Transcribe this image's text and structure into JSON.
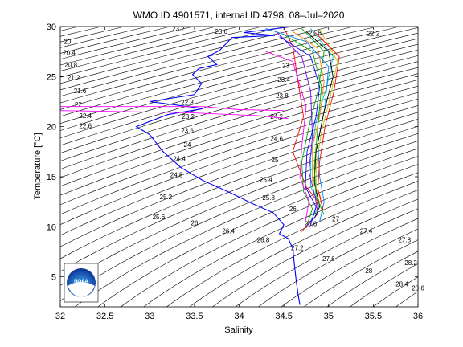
{
  "chart_data": {
    "type": "line",
    "title": "WMO ID 4901571, internal ID 4798, 08–Jul–2020",
    "xlabel": "Salinity",
    "ylabel": "Temperature [°C]",
    "xlim": [
      32,
      36
    ],
    "ylim": [
      2,
      30
    ],
    "xticks": [
      "32",
      "32.5",
      "33",
      "33.5",
      "34",
      "34.5",
      "35",
      "35.5",
      "36"
    ],
    "yticks": [
      "5",
      "10",
      "15",
      "20",
      "25",
      "30"
    ],
    "grid": false,
    "density_contours": {
      "color": "#000000",
      "labels": [
        {
          "label": "20",
          "s": 32.08,
          "t": 28.5
        },
        {
          "label": "20.4",
          "s": 32.1,
          "t": 27.4
        },
        {
          "label": "20.8",
          "s": 32.12,
          "t": 26.2
        },
        {
          "label": "21.2",
          "s": 32.15,
          "t": 24.9
        },
        {
          "label": "21.6",
          "s": 32.22,
          "t": 23.6
        },
        {
          "label": "22",
          "s": 32.2,
          "t": 22.2
        },
        {
          "label": "22.4",
          "s": 32.28,
          "t": 21.1
        },
        {
          "label": "22.6",
          "s": 32.28,
          "t": 20.1
        },
        {
          "label": "22.8",
          "s": 33.42,
          "t": 22.4
        },
        {
          "label": "23.2",
          "s": 33.43,
          "t": 21.0
        },
        {
          "label": "23.6",
          "s": 33.42,
          "t": 19.6
        },
        {
          "label": "24",
          "s": 33.42,
          "t": 18.2
        },
        {
          "label": "24.4",
          "s": 33.33,
          "t": 16.8
        },
        {
          "label": "24.8",
          "s": 33.3,
          "t": 15.2
        },
        {
          "label": "25.2",
          "s": 33.18,
          "t": 13.0
        },
        {
          "label": "25.6",
          "s": 33.1,
          "t": 11.0
        },
        {
          "label": "26",
          "s": 33.5,
          "t": 10.4
        },
        {
          "label": "26.4",
          "s": 33.88,
          "t": 9.6
        },
        {
          "label": "26.8",
          "s": 34.27,
          "t": 8.7
        },
        {
          "label": "27.2",
          "s": 34.65,
          "t": 7.9
        },
        {
          "label": "27",
          "s": 35.08,
          "t": 10.8
        },
        {
          "label": "27.4",
          "s": 35.42,
          "t": 9.6
        },
        {
          "label": "27.6",
          "s": 35.0,
          "t": 6.8
        },
        {
          "label": "27.8",
          "s": 35.85,
          "t": 8.7
        },
        {
          "label": "28",
          "s": 35.45,
          "t": 5.6
        },
        {
          "label": "28.2",
          "s": 35.92,
          "t": 6.4
        },
        {
          "label": "28.4",
          "s": 35.82,
          "t": 4.3
        },
        {
          "label": "28.6",
          "s": 36.0,
          "t": 3.9
        },
        {
          "label": "23.2",
          "s": 33.32,
          "t": 29.8
        },
        {
          "label": "23.6",
          "s": 33.8,
          "t": 29.5
        },
        {
          "label": "21.8",
          "s": 34.85,
          "t": 29.4
        },
        {
          "label": "22.2",
          "s": 35.5,
          "t": 29.3
        },
        {
          "label": "23",
          "s": 34.52,
          "t": 26.1
        },
        {
          "label": "23.4",
          "s": 34.5,
          "t": 24.7
        },
        {
          "label": "23.8",
          "s": 34.48,
          "t": 23.1
        },
        {
          "label": "24.2",
          "s": 34.42,
          "t": 21.0
        },
        {
          "label": "24.6",
          "s": 34.42,
          "t": 18.8
        },
        {
          "label": "25",
          "s": 34.4,
          "t": 16.7
        },
        {
          "label": "25.4",
          "s": 34.3,
          "t": 14.7
        },
        {
          "label": "25.8",
          "s": 34.33,
          "t": 12.9
        },
        {
          "label": "26",
          "s": 34.6,
          "t": 11.8
        },
        {
          "label": "26.6",
          "s": 34.8,
          "t": 10.3
        }
      ]
    },
    "series": [
      {
        "color": "#0000ff",
        "points": [
          [
            34.6,
            30
          ],
          [
            34.05,
            29.4
          ],
          [
            34.4,
            29.1
          ],
          [
            33.92,
            28.9
          ],
          [
            33.78,
            27.6
          ],
          [
            33.65,
            27.0
          ],
          [
            33.75,
            26.2
          ],
          [
            33.55,
            25.8
          ],
          [
            33.48,
            25.2
          ],
          [
            33.58,
            24.3
          ],
          [
            33.5,
            23.2
          ],
          [
            33.0,
            22.5
          ],
          [
            33.6,
            21.8
          ],
          [
            33.2,
            21.2
          ],
          [
            32.85,
            20.0
          ],
          [
            33.0,
            19.2
          ],
          [
            33.15,
            17.5
          ],
          [
            33.35,
            15.9
          ],
          [
            33.6,
            14.6
          ],
          [
            33.9,
            13.4
          ],
          [
            34.15,
            12.3
          ],
          [
            34.38,
            11.4
          ],
          [
            34.5,
            10.2
          ],
          [
            34.45,
            9.3
          ],
          [
            34.55,
            8.8
          ],
          [
            34.6,
            7.8
          ],
          [
            34.62,
            6.0
          ],
          [
            34.64,
            4.5
          ],
          [
            34.66,
            3.2
          ],
          [
            34.68,
            2.2
          ]
        ]
      },
      {
        "color": "#ff00ff",
        "points": [
          [
            32.0,
            22.0
          ],
          [
            33.6,
            22.0
          ],
          [
            34.0,
            21.7
          ],
          [
            34.5,
            21.6
          ]
        ]
      },
      {
        "color": "#ff00ff",
        "points": [
          [
            32.0,
            21.6
          ],
          [
            33.4,
            21.4
          ],
          [
            34.2,
            21.1
          ],
          [
            34.55,
            20.8
          ]
        ]
      },
      {
        "color": "#ff0000",
        "points": [
          [
            34.5,
            29.9
          ],
          [
            34.6,
            28.0
          ],
          [
            34.65,
            25.0
          ],
          [
            34.72,
            21.0
          ],
          [
            34.6,
            17.5
          ],
          [
            34.75,
            14.0
          ],
          [
            34.88,
            12.5
          ],
          [
            34.82,
            10.8
          ],
          [
            34.7,
            9.5
          ]
        ]
      },
      {
        "color": "#00aa00",
        "points": [
          [
            34.7,
            29.8
          ],
          [
            34.95,
            27.5
          ],
          [
            34.88,
            23.5
          ],
          [
            34.78,
            20.0
          ],
          [
            34.7,
            16.5
          ],
          [
            34.72,
            13.5
          ],
          [
            34.82,
            11.8
          ],
          [
            34.76,
            10.2
          ]
        ]
      },
      {
        "color": "#00bfbf",
        "points": [
          [
            34.8,
            29.8
          ],
          [
            35.05,
            27.0
          ],
          [
            34.98,
            24.0
          ],
          [
            34.86,
            20.5
          ],
          [
            34.8,
            17.0
          ],
          [
            34.8,
            14.0
          ],
          [
            34.9,
            12.2
          ],
          [
            34.8,
            10.6
          ]
        ]
      },
      {
        "color": "#bfbf00",
        "points": [
          [
            34.9,
            29.7
          ],
          [
            35.1,
            26.5
          ],
          [
            35.02,
            23.0
          ],
          [
            34.92,
            19.5
          ],
          [
            34.86,
            16.0
          ],
          [
            34.86,
            13.5
          ],
          [
            34.92,
            11.8
          ]
        ]
      },
      {
        "color": "#7f00ff",
        "points": [
          [
            34.4,
            29.6
          ],
          [
            34.7,
            27.0
          ],
          [
            34.8,
            23.5
          ],
          [
            34.82,
            19.0
          ],
          [
            34.78,
            15.5
          ],
          [
            34.85,
            13.0
          ],
          [
            34.88,
            11.3
          ],
          [
            34.75,
            10.0
          ]
        ]
      },
      {
        "color": "#ff8000",
        "points": [
          [
            34.6,
            29.5
          ],
          [
            34.88,
            27.8
          ],
          [
            34.95,
            24.5
          ],
          [
            34.9,
            21.0
          ],
          [
            34.82,
            18.0
          ],
          [
            34.82,
            14.5
          ],
          [
            34.92,
            12.8
          ]
        ]
      },
      {
        "color": "#0080ff",
        "points": [
          [
            34.3,
            29.8
          ],
          [
            34.75,
            28.5
          ],
          [
            35.0,
            26.0
          ],
          [
            34.96,
            22.0
          ],
          [
            34.88,
            18.5
          ],
          [
            34.9,
            15.0
          ],
          [
            34.95,
            12.5
          ],
          [
            34.9,
            10.5
          ]
        ]
      },
      {
        "color": "#000000",
        "points": [
          [
            34.75,
            29.5
          ],
          [
            35.0,
            27.5
          ],
          [
            35.05,
            25.0
          ],
          [
            34.95,
            21.5
          ],
          [
            34.86,
            17.5
          ],
          [
            34.84,
            14.5
          ],
          [
            34.9,
            12.0
          ],
          [
            34.84,
            10.8
          ]
        ]
      },
      {
        "color": "#ff0000",
        "points": [
          [
            34.85,
            29.4
          ],
          [
            35.12,
            27.0
          ],
          [
            35.06,
            23.5
          ],
          [
            34.96,
            20.0
          ],
          [
            34.9,
            16.5
          ],
          [
            34.88,
            13.8
          ],
          [
            34.94,
            11.6
          ]
        ]
      },
      {
        "color": "#00aa00",
        "points": [
          [
            34.5,
            29.2
          ],
          [
            34.82,
            27.5
          ],
          [
            34.92,
            24.0
          ],
          [
            34.88,
            20.0
          ],
          [
            34.84,
            16.0
          ],
          [
            34.86,
            13.0
          ],
          [
            34.95,
            11.2
          ]
        ]
      },
      {
        "color": "#ff00ff",
        "points": [
          [
            34.3,
            27.5
          ],
          [
            34.6,
            26.5
          ],
          [
            34.75,
            22.0
          ],
          [
            34.7,
            18.0
          ],
          [
            34.68,
            15.0
          ],
          [
            34.78,
            12.5
          ],
          [
            34.74,
            10.4
          ]
        ]
      },
      {
        "color": "#0000ff",
        "points": [
          [
            34.45,
            29.0
          ],
          [
            34.8,
            27.0
          ],
          [
            34.9,
            24.0
          ],
          [
            34.86,
            21.0
          ],
          [
            34.76,
            17.5
          ],
          [
            34.74,
            14.0
          ],
          [
            34.86,
            12.0
          ],
          [
            34.8,
            10.2
          ]
        ]
      }
    ]
  },
  "logo": {
    "text": "NOAA"
  }
}
